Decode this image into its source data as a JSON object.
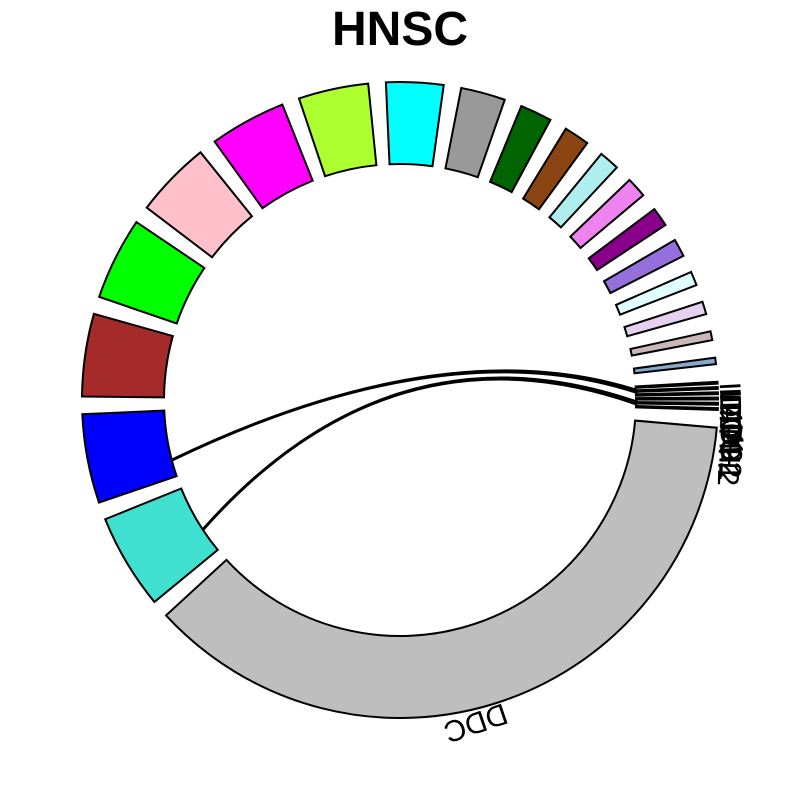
{
  "chart_data": {
    "type": "chord",
    "title": "HNSC",
    "sectors": [
      {
        "name": "DDC",
        "value": 57.0,
        "color": "#BEBEBE"
      },
      {
        "name": "",
        "value": 7.5,
        "color": "#40E0D0"
      },
      {
        "name": "",
        "value": 7.0,
        "color": "#0000FF"
      },
      {
        "name": "",
        "value": 6.5,
        "color": "#A52A2A"
      },
      {
        "name": "",
        "value": 6.5,
        "color": "#00FF00"
      },
      {
        "name": "",
        "value": 6.0,
        "color": "#FFC0CB"
      },
      {
        "name": "",
        "value": 6.0,
        "color": "#FF00FF"
      },
      {
        "name": "",
        "value": 5.5,
        "color": "#ADFF2F"
      },
      {
        "name": "",
        "value": 4.5,
        "color": "#00FFFF"
      },
      {
        "name": "",
        "value": 3.5,
        "color": "#999999"
      },
      {
        "name": "",
        "value": 2.5,
        "color": "#006400"
      },
      {
        "name": "",
        "value": 2.0,
        "color": "#8B4513"
      },
      {
        "name": "",
        "value": 1.6,
        "color": "#AFEEEE"
      },
      {
        "name": "",
        "value": 1.6,
        "color": "#EE82EE"
      },
      {
        "name": "",
        "value": 1.5,
        "color": "#8B008B"
      },
      {
        "name": "",
        "value": 1.4,
        "color": "#9370DB"
      },
      {
        "name": "",
        "value": 1.1,
        "color": "#E0FFFF"
      },
      {
        "name": "",
        "value": 1.0,
        "color": "#E6D0F0"
      },
      {
        "name": "",
        "value": 0.7,
        "color": "#C8B8B8"
      },
      {
        "name": "",
        "value": 0.5,
        "color": "#87A8C8"
      },
      {
        "name": "IL4I1",
        "value": 0.15,
        "color": "#333333"
      },
      {
        "name": "IDO1",
        "value": 0.15,
        "color": "#000080"
      },
      {
        "name": "IDO2",
        "value": 0.15,
        "color": "#333333"
      },
      {
        "name": "TDO2",
        "value": 0.15,
        "color": "#333333"
      },
      {
        "name": "TPH1",
        "value": 0.15,
        "color": "#20B2AA"
      },
      {
        "name": "TPH2",
        "value": 0.15,
        "color": "#333333"
      }
    ],
    "links": [
      {
        "from": "IDO1",
        "to_color": "#0000FF",
        "color": "#000080"
      },
      {
        "from": "TPH1",
        "to_color": "#40E0D0",
        "color": "#20B2AA"
      }
    ]
  }
}
